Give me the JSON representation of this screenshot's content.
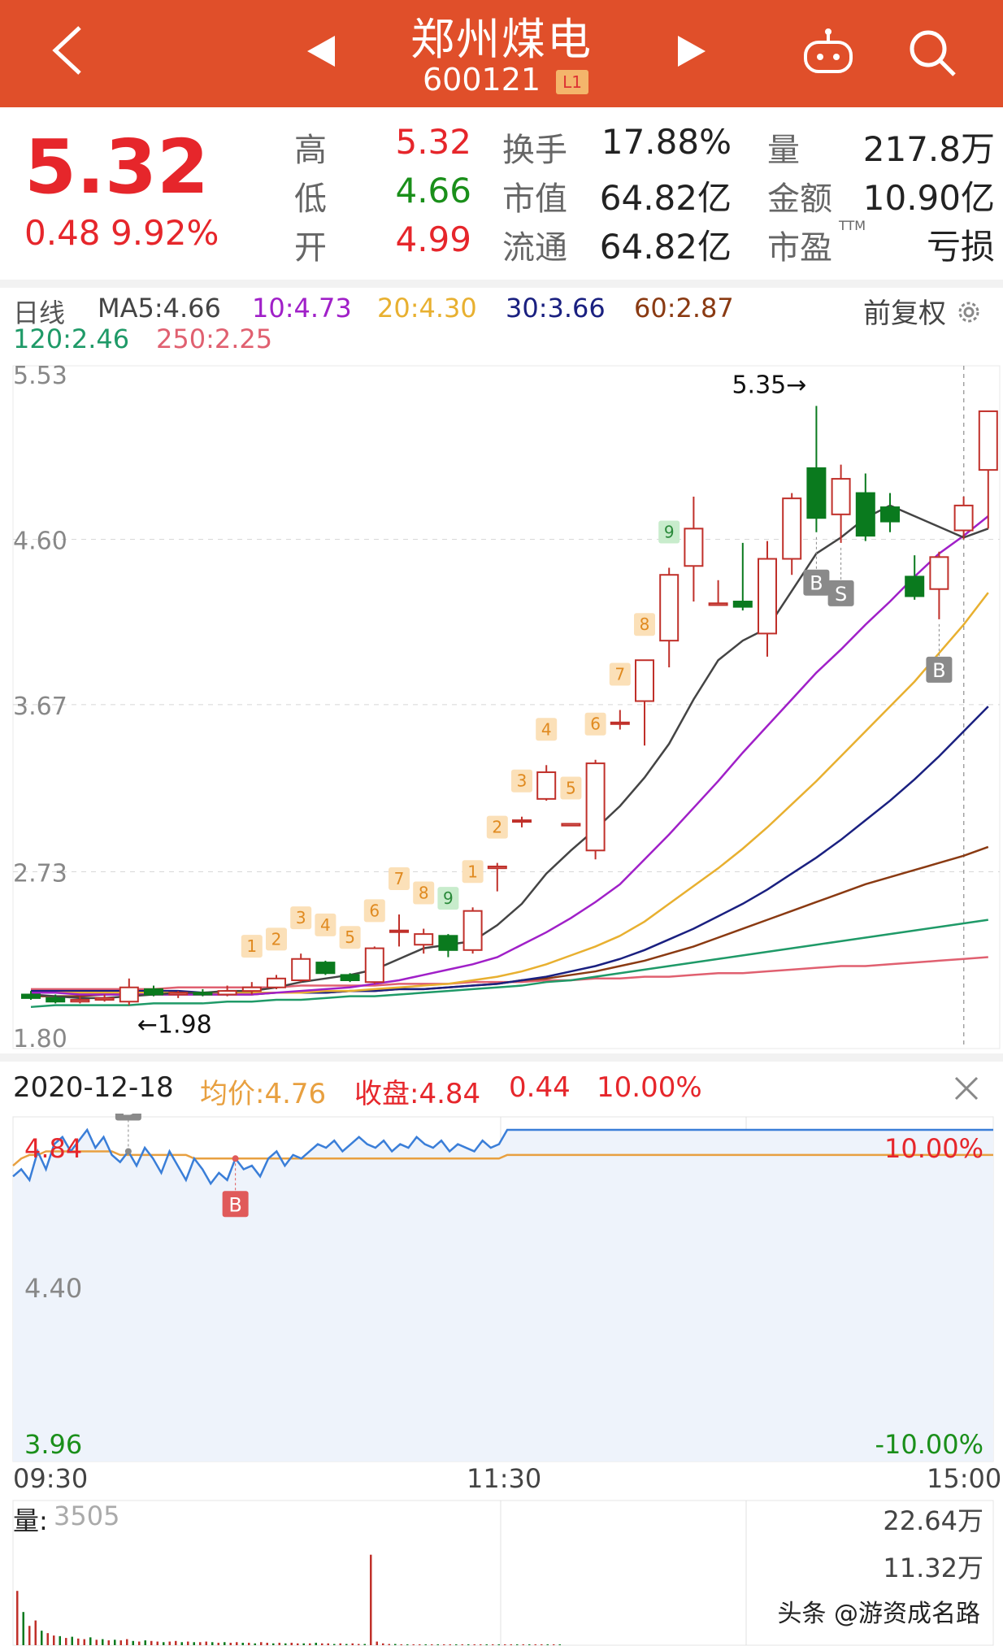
{
  "header": {
    "title": "郑州煤电",
    "code": "600121",
    "badge": "L1",
    "bg_color": "#e04f2a"
  },
  "quote": {
    "price": "5.32",
    "change": "0.48",
    "change_pct": "9.92%",
    "high_label": "高",
    "high": "5.32",
    "low_label": "低",
    "low": "4.66",
    "open_label": "开",
    "open": "4.99",
    "turnover_label": "换手",
    "turnover": "17.88%",
    "mktcap_label": "市值",
    "mktcap": "64.82亿",
    "float_label": "流通",
    "float": "64.82亿",
    "vol_label": "量",
    "vol": "217.8万",
    "amount_label": "金额",
    "amount": "10.90亿",
    "pe_label": "市盈",
    "pe_sup": "TTM",
    "pe": "亏损"
  },
  "ma_legend": {
    "period": "日线",
    "ma5": "MA5:4.66",
    "ma10": "10:4.73",
    "ma20": "20:4.30",
    "ma30": "30:3.66",
    "ma60": "60:2.87",
    "ma120": "120:2.46",
    "ma250": "250:2.25",
    "restore": "前复权"
  },
  "colors": {
    "up": "#c0302a",
    "down": "#0a7a1e",
    "ma5": "#444444",
    "ma10": "#a020c8",
    "ma20": "#e8b030",
    "ma30": "#1a2080",
    "ma60": "#8a3a12",
    "ma120": "#1f9a68",
    "ma250": "#e06070",
    "intraday_price": "#3a7ed8",
    "intraday_avg": "#e8a040"
  },
  "chart_data": [
    {
      "type": "candlestick",
      "y_ticks": [
        "5.53",
        "4.60",
        "3.67",
        "2.73",
        "1.80"
      ],
      "ylim": [
        1.8,
        5.53
      ],
      "max_label": "5.35→",
      "min_label": "←1.98",
      "candles": [
        {
          "o": 2.04,
          "c": 2.02,
          "h": 2.06,
          "l": 2.01
        },
        {
          "o": 2.02,
          "c": 2.0,
          "h": 2.04,
          "l": 1.99
        },
        {
          "o": 2.0,
          "c": 2.01,
          "h": 2.03,
          "l": 1.99
        },
        {
          "o": 2.01,
          "c": 2.02,
          "h": 2.04,
          "l": 2.0
        },
        {
          "o": 2.0,
          "c": 2.08,
          "h": 2.13,
          "l": 1.98
        },
        {
          "o": 2.07,
          "c": 2.04,
          "h": 2.09,
          "l": 2.03
        },
        {
          "o": 2.04,
          "c": 2.05,
          "h": 2.06,
          "l": 2.02
        },
        {
          "o": 2.05,
          "c": 2.04,
          "h": 2.07,
          "l": 2.03
        },
        {
          "o": 2.04,
          "c": 2.06,
          "h": 2.09,
          "l": 2.03
        },
        {
          "o": 2.06,
          "c": 2.08,
          "h": 2.11,
          "l": 2.04
        },
        {
          "o": 2.08,
          "c": 2.13,
          "h": 2.15,
          "l": 2.07
        },
        {
          "o": 2.12,
          "c": 2.24,
          "h": 2.27,
          "l": 2.11
        },
        {
          "o": 2.22,
          "c": 2.16,
          "h": 2.23,
          "l": 2.15
        },
        {
          "o": 2.15,
          "c": 2.12,
          "h": 2.16,
          "l": 2.11
        },
        {
          "o": 2.11,
          "c": 2.3,
          "h": 2.31,
          "l": 2.1
        },
        {
          "o": 2.4,
          "c": 2.4,
          "h": 2.49,
          "l": 2.31
        },
        {
          "o": 2.32,
          "c": 2.38,
          "h": 2.41,
          "l": 2.27
        },
        {
          "o": 2.37,
          "c": 2.29,
          "h": 2.38,
          "l": 2.25
        },
        {
          "o": 2.29,
          "c": 2.51,
          "h": 2.53,
          "l": 2.27
        },
        {
          "o": 2.75,
          "c": 2.76,
          "h": 2.78,
          "l": 2.62
        },
        {
          "o": 3.02,
          "c": 3.02,
          "h": 3.04,
          "l": 2.98
        },
        {
          "o": 3.14,
          "c": 3.29,
          "h": 3.33,
          "l": 3.13
        },
        {
          "o": 2.99,
          "c": 3.0,
          "h": 3.0,
          "l": 2.99
        },
        {
          "o": 2.85,
          "c": 3.34,
          "h": 3.36,
          "l": 2.8
        },
        {
          "o": 3.57,
          "c": 3.57,
          "h": 3.64,
          "l": 3.53
        },
        {
          "o": 3.69,
          "c": 3.92,
          "h": 3.92,
          "l": 3.44
        },
        {
          "o": 4.03,
          "c": 4.4,
          "h": 4.44,
          "l": 3.88
        },
        {
          "o": 4.45,
          "c": 4.66,
          "h": 4.84,
          "l": 4.25
        },
        {
          "o": 4.23,
          "c": 4.24,
          "h": 4.37,
          "l": 4.23
        },
        {
          "o": 4.25,
          "c": 4.22,
          "h": 4.58,
          "l": 4.2
        },
        {
          "o": 4.07,
          "c": 4.49,
          "h": 4.59,
          "l": 3.94
        },
        {
          "o": 4.49,
          "c": 4.83,
          "h": 4.86,
          "l": 4.4
        },
        {
          "o": 5.0,
          "c": 4.72,
          "h": 5.35,
          "l": 4.64
        },
        {
          "o": 4.74,
          "c": 4.94,
          "h": 5.02,
          "l": 4.58
        },
        {
          "o": 4.86,
          "c": 4.62,
          "h": 4.97,
          "l": 4.59
        },
        {
          "o": 4.78,
          "c": 4.7,
          "h": 4.86,
          "l": 4.64
        },
        {
          "o": 4.39,
          "c": 4.28,
          "h": 4.51,
          "l": 4.26
        },
        {
          "o": 4.32,
          "c": 4.5,
          "h": 4.53,
          "l": 4.15
        },
        {
          "o": 4.65,
          "c": 4.79,
          "h": 4.84,
          "l": 4.6
        },
        {
          "o": 4.99,
          "c": 5.32,
          "h": 5.32,
          "l": 4.66
        }
      ],
      "ma5": [
        2.04,
        2.03,
        2.02,
        2.02,
        2.03,
        2.04,
        2.05,
        2.05,
        2.06,
        2.06,
        2.08,
        2.11,
        2.13,
        2.15,
        2.18,
        2.24,
        2.3,
        2.32,
        2.34,
        2.43,
        2.55,
        2.72,
        2.85,
        2.97,
        3.1,
        3.26,
        3.45,
        3.7,
        3.92,
        4.03,
        4.1,
        4.31,
        4.52,
        4.61,
        4.72,
        4.79,
        4.73,
        4.67,
        4.61,
        4.66
      ],
      "ma10": [
        2.05,
        2.05,
        2.04,
        2.04,
        2.04,
        2.04,
        2.04,
        2.04,
        2.04,
        2.04,
        2.05,
        2.06,
        2.07,
        2.08,
        2.1,
        2.12,
        2.15,
        2.18,
        2.21,
        2.25,
        2.32,
        2.39,
        2.47,
        2.56,
        2.66,
        2.8,
        2.94,
        3.09,
        3.24,
        3.4,
        3.55,
        3.7,
        3.85,
        3.98,
        4.12,
        4.25,
        4.39,
        4.52,
        4.62,
        4.73
      ],
      "ma20": [
        2.05,
        2.05,
        2.05,
        2.05,
        2.05,
        2.05,
        2.05,
        2.05,
        2.05,
        2.05,
        2.05,
        2.05,
        2.06,
        2.06,
        2.07,
        2.08,
        2.09,
        2.1,
        2.12,
        2.14,
        2.17,
        2.21,
        2.26,
        2.31,
        2.37,
        2.45,
        2.55,
        2.65,
        2.75,
        2.86,
        2.98,
        3.11,
        3.24,
        3.38,
        3.52,
        3.66,
        3.8,
        3.96,
        4.12,
        4.3
      ],
      "ma30": [
        2.06,
        2.06,
        2.06,
        2.06,
        2.06,
        2.06,
        2.06,
        2.05,
        2.05,
        2.05,
        2.05,
        2.05,
        2.05,
        2.06,
        2.06,
        2.07,
        2.07,
        2.08,
        2.09,
        2.1,
        2.12,
        2.14,
        2.17,
        2.2,
        2.24,
        2.29,
        2.35,
        2.41,
        2.48,
        2.55,
        2.63,
        2.72,
        2.81,
        2.91,
        3.02,
        3.13,
        3.25,
        3.38,
        3.52,
        3.66
      ],
      "ma60": [
        2.03,
        2.03,
        2.03,
        2.04,
        2.04,
        2.04,
        2.04,
        2.04,
        2.04,
        2.04,
        2.05,
        2.05,
        2.05,
        2.06,
        2.06,
        2.07,
        2.07,
        2.08,
        2.09,
        2.1,
        2.12,
        2.13,
        2.15,
        2.17,
        2.2,
        2.23,
        2.27,
        2.31,
        2.36,
        2.41,
        2.46,
        2.51,
        2.56,
        2.61,
        2.66,
        2.7,
        2.74,
        2.78,
        2.82,
        2.87
      ],
      "ma120": [
        1.97,
        1.98,
        1.98,
        1.98,
        1.98,
        1.99,
        1.99,
        1.99,
        2.0,
        2.0,
        2.01,
        2.01,
        2.02,
        2.03,
        2.03,
        2.04,
        2.05,
        2.06,
        2.07,
        2.08,
        2.09,
        2.11,
        2.12,
        2.14,
        2.16,
        2.18,
        2.2,
        2.22,
        2.24,
        2.26,
        2.28,
        2.3,
        2.32,
        2.34,
        2.36,
        2.38,
        2.4,
        2.42,
        2.44,
        2.46
      ],
      "ma250": [
        2.07,
        2.07,
        2.07,
        2.07,
        2.07,
        2.07,
        2.08,
        2.08,
        2.08,
        2.08,
        2.08,
        2.09,
        2.09,
        2.09,
        2.09,
        2.1,
        2.1,
        2.1,
        2.11,
        2.11,
        2.11,
        2.12,
        2.12,
        2.13,
        2.13,
        2.14,
        2.14,
        2.15,
        2.16,
        2.16,
        2.17,
        2.18,
        2.19,
        2.2,
        2.2,
        2.21,
        2.22,
        2.23,
        2.24,
        2.25
      ],
      "count_labels": [
        {
          "i": 9,
          "t": "1",
          "type": "up"
        },
        {
          "i": 10,
          "t": "2",
          "type": "up"
        },
        {
          "i": 11,
          "t": "3",
          "type": "up"
        },
        {
          "i": 12,
          "t": "4",
          "type": "up"
        },
        {
          "i": 13,
          "t": "5",
          "type": "up"
        },
        {
          "i": 14,
          "t": "6",
          "type": "up"
        },
        {
          "i": 15,
          "t": "7",
          "type": "up"
        },
        {
          "i": 16,
          "t": "8",
          "type": "up"
        },
        {
          "i": 17,
          "t": "9",
          "type": "down"
        },
        {
          "i": 18,
          "t": "1",
          "type": "up"
        },
        {
          "i": 19,
          "t": "2",
          "type": "up"
        },
        {
          "i": 20,
          "t": "3",
          "type": "up"
        },
        {
          "i": 21,
          "t": "4",
          "type": "up"
        },
        {
          "i": 22,
          "t": "5",
          "type": "up"
        },
        {
          "i": 23,
          "t": "6",
          "type": "up"
        },
        {
          "i": 24,
          "t": "7",
          "type": "up"
        },
        {
          "i": 25,
          "t": "8",
          "type": "up"
        },
        {
          "i": 26,
          "t": "9",
          "type": "down"
        }
      ],
      "signals": [
        {
          "i": 32,
          "t": "B"
        },
        {
          "i": 33,
          "t": "S"
        },
        {
          "i": 37,
          "t": "B"
        }
      ]
    },
    {
      "type": "line",
      "date": "2020-12-18",
      "avg_label": "均价:4.76",
      "close_label": "收盘:4.84",
      "change": "0.44",
      "change_pct": "10.00%",
      "y_left": [
        "4.84",
        "4.40",
        "3.96"
      ],
      "y_right": [
        "10.00%",
        "-10.00%"
      ],
      "ylim": [
        3.96,
        4.84
      ],
      "x_ticks": [
        "09:30",
        "11:30",
        "15:00"
      ],
      "price": [
        4.71,
        4.73,
        4.7,
        4.78,
        4.73,
        4.8,
        4.82,
        4.78,
        4.81,
        4.84,
        4.79,
        4.82,
        4.77,
        4.75,
        4.78,
        4.74,
        4.79,
        4.76,
        4.72,
        4.78,
        4.74,
        4.7,
        4.76,
        4.73,
        4.69,
        4.72,
        4.7,
        4.76,
        4.73,
        4.74,
        4.71,
        4.76,
        4.78,
        4.74,
        4.77,
        4.76,
        4.78,
        4.8,
        4.79,
        4.81,
        4.78,
        4.8,
        4.82,
        4.8,
        4.79,
        4.81,
        4.78,
        4.8,
        4.79,
        4.82,
        4.8,
        4.79,
        4.81,
        4.78,
        4.8,
        4.79,
        4.78,
        4.81,
        4.79,
        4.8,
        4.84,
        4.84,
        4.84,
        4.84,
        4.84,
        4.84,
        4.84,
        4.84,
        4.84,
        4.84,
        4.84,
        4.84,
        4.84,
        4.84,
        4.84,
        4.84,
        4.84,
        4.84,
        4.84,
        4.84,
        4.84,
        4.84,
        4.84,
        4.84,
        4.84,
        4.84,
        4.84,
        4.84,
        4.84,
        4.84,
        4.84,
        4.84,
        4.84,
        4.84,
        4.84,
        4.84,
        4.84,
        4.84,
        4.84,
        4.84,
        4.84,
        4.84,
        4.84,
        4.84,
        4.84,
        4.84,
        4.84,
        4.84,
        4.84,
        4.84,
        4.84,
        4.84,
        4.84,
        4.84,
        4.84,
        4.84,
        4.84,
        4.84,
        4.84,
        4.84
      ],
      "avg": [
        4.74,
        4.76,
        4.77,
        4.77,
        4.78,
        4.78,
        4.78,
        4.78,
        4.78,
        4.78,
        4.78,
        4.78,
        4.78,
        4.77,
        4.77,
        4.77,
        4.77,
        4.77,
        4.77,
        4.77,
        4.77,
        4.77,
        4.76,
        4.76,
        4.76,
        4.76,
        4.76,
        4.76,
        4.76,
        4.76,
        4.76,
        4.76,
        4.76,
        4.76,
        4.76,
        4.76,
        4.76,
        4.76,
        4.76,
        4.76,
        4.76,
        4.76,
        4.76,
        4.76,
        4.76,
        4.76,
        4.76,
        4.76,
        4.76,
        4.76,
        4.76,
        4.76,
        4.76,
        4.76,
        4.76,
        4.76,
        4.76,
        4.76,
        4.76,
        4.76,
        4.77,
        4.77,
        4.77,
        4.77,
        4.77,
        4.77,
        4.77,
        4.77,
        4.77,
        4.77,
        4.77,
        4.77,
        4.77,
        4.77,
        4.77,
        4.77,
        4.77,
        4.77,
        4.77,
        4.77,
        4.77,
        4.77,
        4.77,
        4.77,
        4.77,
        4.77,
        4.77,
        4.77,
        4.77,
        4.77,
        4.77,
        4.77,
        4.77,
        4.77,
        4.77,
        4.77,
        4.77,
        4.77,
        4.77,
        4.77,
        4.77,
        4.77,
        4.77,
        4.77,
        4.77,
        4.77,
        4.77,
        4.77,
        4.77,
        4.77,
        4.77,
        4.77,
        4.77,
        4.77,
        4.77,
        4.77,
        4.77,
        4.77,
        4.77,
        4.77
      ],
      "signals": [
        {
          "i": 14,
          "t": "B",
          "color": "gray"
        },
        {
          "i": 27,
          "t": "B",
          "color": "red"
        }
      ]
    },
    {
      "type": "bar",
      "label": "量:",
      "last": "3505",
      "y_labels": [
        "22.64万",
        "11.32万"
      ],
      "ylim": [
        0,
        22.64
      ],
      "values": [
        9.0,
        5.5,
        3.2,
        4.1,
        2.4,
        2.0,
        1.6,
        1.5,
        1.2,
        1.4,
        1.1,
        1.0,
        1.3,
        0.9,
        1.0,
        0.8,
        0.9,
        0.8,
        1.0,
        0.7,
        0.6,
        0.8,
        0.7,
        0.6,
        0.5,
        0.6,
        0.7,
        0.5,
        0.6,
        0.5,
        0.5,
        0.6,
        0.5,
        0.4,
        0.5,
        0.4,
        0.5,
        0.4,
        0.4,
        0.3,
        0.5,
        0.4,
        0.3,
        0.4,
        0.3,
        0.4,
        0.3,
        0.3,
        0.3,
        0.4,
        0.3,
        0.3,
        0.2,
        0.3,
        0.2,
        0.3,
        0.2,
        0.2,
        15.0,
        0.6,
        0.3,
        0.2,
        0.2,
        0.1,
        0.1,
        0.1,
        0.1,
        0.1,
        0.1,
        0.1,
        0.1,
        0.1,
        0.1,
        0.1,
        0.1,
        0.1,
        0.1,
        0.1,
        0.1,
        0.1,
        0.1,
        0.1,
        0.1,
        0.1,
        0.1,
        0.1,
        0.1,
        0.1,
        0.1,
        0.1
      ],
      "up": [
        1,
        0,
        1,
        1,
        0,
        1,
        1,
        0,
        1,
        0,
        1,
        1,
        0,
        1,
        0,
        1,
        0,
        1,
        1,
        0,
        1,
        0,
        1,
        1,
        0,
        1,
        1,
        0,
        1,
        0,
        1,
        1,
        0,
        1,
        0,
        1,
        1,
        0,
        1,
        0,
        1,
        1,
        0,
        1,
        0,
        1,
        1,
        0,
        1,
        0,
        1,
        1,
        0,
        1,
        0,
        1,
        1,
        0,
        1,
        1,
        1,
        1,
        0,
        1,
        0,
        1,
        1,
        0,
        1,
        0,
        1,
        1,
        0,
        1,
        0,
        1,
        1,
        0,
        1,
        0,
        1,
        1,
        0,
        1,
        0,
        1,
        1,
        0,
        1,
        0
      ]
    }
  ],
  "watermark": "头条 @游资成名路"
}
